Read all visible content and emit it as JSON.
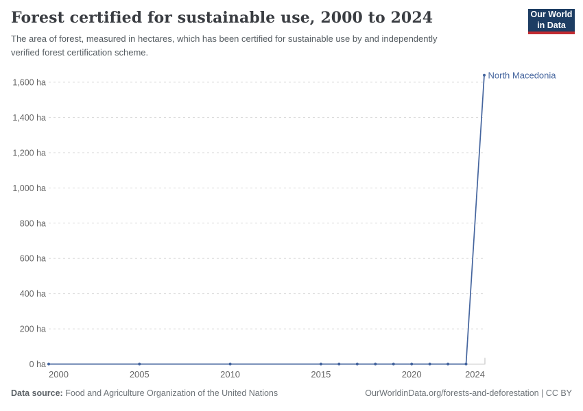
{
  "header": {
    "title": "Forest certified for sustainable use, 2000 to 2024",
    "subtitle_line1": "The area of forest, measured in hectares, which has been certified for sustainable use by and independently",
    "subtitle_line2": "verified forest certification scheme.",
    "logo_line1": "Our World",
    "logo_line2": "in Data"
  },
  "colors": {
    "brand_navy": "#1d3d63",
    "accent_red": "#c32b31",
    "line_blue": "#45659e",
    "grid_gray": "#dcdcdc",
    "axis_gray": "#c8c8c8",
    "tick_text_gray": "#666666"
  },
  "chart_data": {
    "type": "line",
    "title": "Forest certified for sustainable use, 2000 to 2024",
    "unit": "ha",
    "xlim": [
      2000,
      2024
    ],
    "ylim": [
      0,
      1640
    ],
    "grid": "horizontal-dashed",
    "legend_position": "end-of-line-label",
    "x_ticks": [
      2000,
      2005,
      2010,
      2015,
      2020,
      2024
    ],
    "y_ticks": [
      {
        "value": 0,
        "label": "0 ha"
      },
      {
        "value": 200,
        "label": "200 ha"
      },
      {
        "value": 400,
        "label": "400 ha"
      },
      {
        "value": 600,
        "label": "600 ha"
      },
      {
        "value": 800,
        "label": "800 ha"
      },
      {
        "value": 1000,
        "label": "1,000 ha"
      },
      {
        "value": 1200,
        "label": "1,200 ha"
      },
      {
        "value": 1400,
        "label": "1,400 ha"
      },
      {
        "value": 1600,
        "label": "1,600 ha"
      }
    ],
    "series": [
      {
        "name": "North Macedonia",
        "color": "#45659e",
        "points": [
          [
            2000,
            0
          ],
          [
            2005,
            0
          ],
          [
            2010,
            0
          ],
          [
            2015,
            0
          ],
          [
            2016,
            0
          ],
          [
            2017,
            0
          ],
          [
            2018,
            0
          ],
          [
            2019,
            0
          ],
          [
            2020,
            0
          ],
          [
            2021,
            0
          ],
          [
            2022,
            0
          ],
          [
            2023,
            0
          ],
          [
            2024,
            1640
          ]
        ]
      }
    ]
  },
  "footer": {
    "datasource_label": "Data source:",
    "datasource_text": "Food and Agriculture Organization of the United Nations",
    "credit": "OurWorldinData.org/forests-and-deforestation | CC BY"
  }
}
